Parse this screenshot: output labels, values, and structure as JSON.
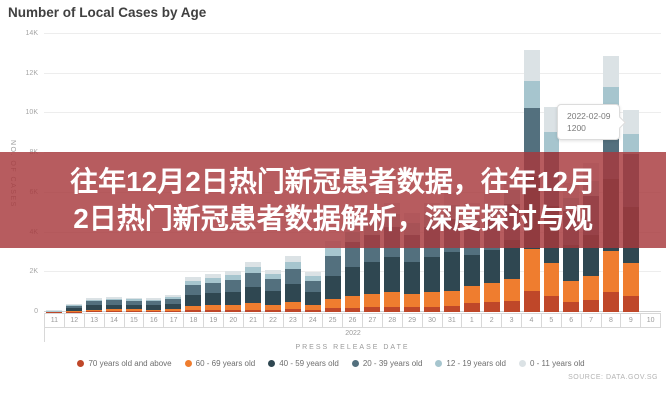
{
  "header": {
    "title": "Number of Local Cases by Age"
  },
  "overlay": {
    "line1": "往年12月2日热门新冠患者数据，往年12月",
    "line2": "2日热门新冠患者数据解析，深度探讨与观",
    "bg_color": "#a7383c",
    "text_color": "#ffffff"
  },
  "tooltip": {
    "date": "2022-02-09",
    "value": "1200"
  },
  "source": "SOURCE: DATA.GOV.SG",
  "chart_data": {
    "type": "bar",
    "stacked": true,
    "title": "Number of Local Cases by Age",
    "xlabel": "PRESS RELEASE DATE",
    "ylabel": "NO. OF CASES",
    "x_year_label": "2022",
    "ylim": [
      0,
      14000
    ],
    "ytick_step": 2000,
    "grid": true,
    "legend_position": "bottom",
    "categories": [
      "11",
      "12",
      "13",
      "14",
      "15",
      "16",
      "17",
      "18",
      "19",
      "20",
      "21",
      "22",
      "23",
      "24",
      "25",
      "26",
      "27",
      "28",
      "29",
      "30",
      "31",
      "1",
      "2",
      "3",
      "4",
      "5",
      "6",
      "7",
      "8",
      "9",
      "10"
    ],
    "series": [
      {
        "name": "70 years old and above",
        "color": "#bf4729",
        "values": [
          3,
          20,
          35,
          38,
          37,
          35,
          43,
          88,
          95,
          103,
          125,
          105,
          140,
          100,
          180,
          225,
          250,
          275,
          250,
          275,
          300,
          440,
          480,
          560,
          1055,
          825,
          520,
          600,
          1030,
          815,
          0
        ]
      },
      {
        "name": "60 - 69 years old",
        "color": "#ef7d2f",
        "values": [
          8,
          52,
          91,
          98,
          95,
          91,
          111,
          228,
          247,
          267,
          325,
          273,
          364,
          260,
          468,
          585,
          650,
          715,
          650,
          715,
          780,
          880,
          960,
          1120,
          2110,
          1650,
          1040,
          1200,
          2065,
          1630,
          0
        ]
      },
      {
        "name": "40 - 59 years old",
        "color": "#2f4751",
        "values": [
          19,
          128,
          224,
          240,
          234,
          224,
          272,
          560,
          608,
          656,
          800,
          672,
          896,
          640,
          1152,
          1440,
          1600,
          1760,
          1600,
          1760,
          1920,
          1540,
          1680,
          1960,
          3695,
          2885,
          1820,
          2100,
          3610,
          2855,
          0
        ]
      },
      {
        "name": "20 - 39 years old",
        "color": "#53707e",
        "values": [
          17,
          112,
          196,
          210,
          204,
          196,
          238,
          490,
          532,
          574,
          700,
          588,
          784,
          560,
          1008,
          1260,
          1400,
          1540,
          1400,
          1540,
          1680,
          1430,
          1560,
          1820,
          3430,
          2680,
          1690,
          1950,
          3355,
          2650,
          0
        ]
      },
      {
        "name": "12 - 19 years old",
        "color": "#a6c5ce",
        "values": [
          7,
          48,
          84,
          90,
          88,
          84,
          102,
          210,
          228,
          246,
          300,
          252,
          336,
          240,
          432,
          540,
          600,
          660,
          600,
          660,
          720,
          550,
          600,
          700,
          1320,
          1030,
          650,
          750,
          1290,
          1020,
          0
        ]
      },
      {
        "name": "0 - 11 years old",
        "color": "#dbe2e5",
        "values": [
          6,
          40,
          70,
          75,
          73,
          70,
          85,
          175,
          190,
          205,
          250,
          210,
          280,
          200,
          360,
          450,
          500,
          550,
          500,
          550,
          600,
          660,
          720,
          840,
          1585,
          1235,
          780,
          900,
          1550,
          1225,
          0
        ]
      }
    ]
  }
}
